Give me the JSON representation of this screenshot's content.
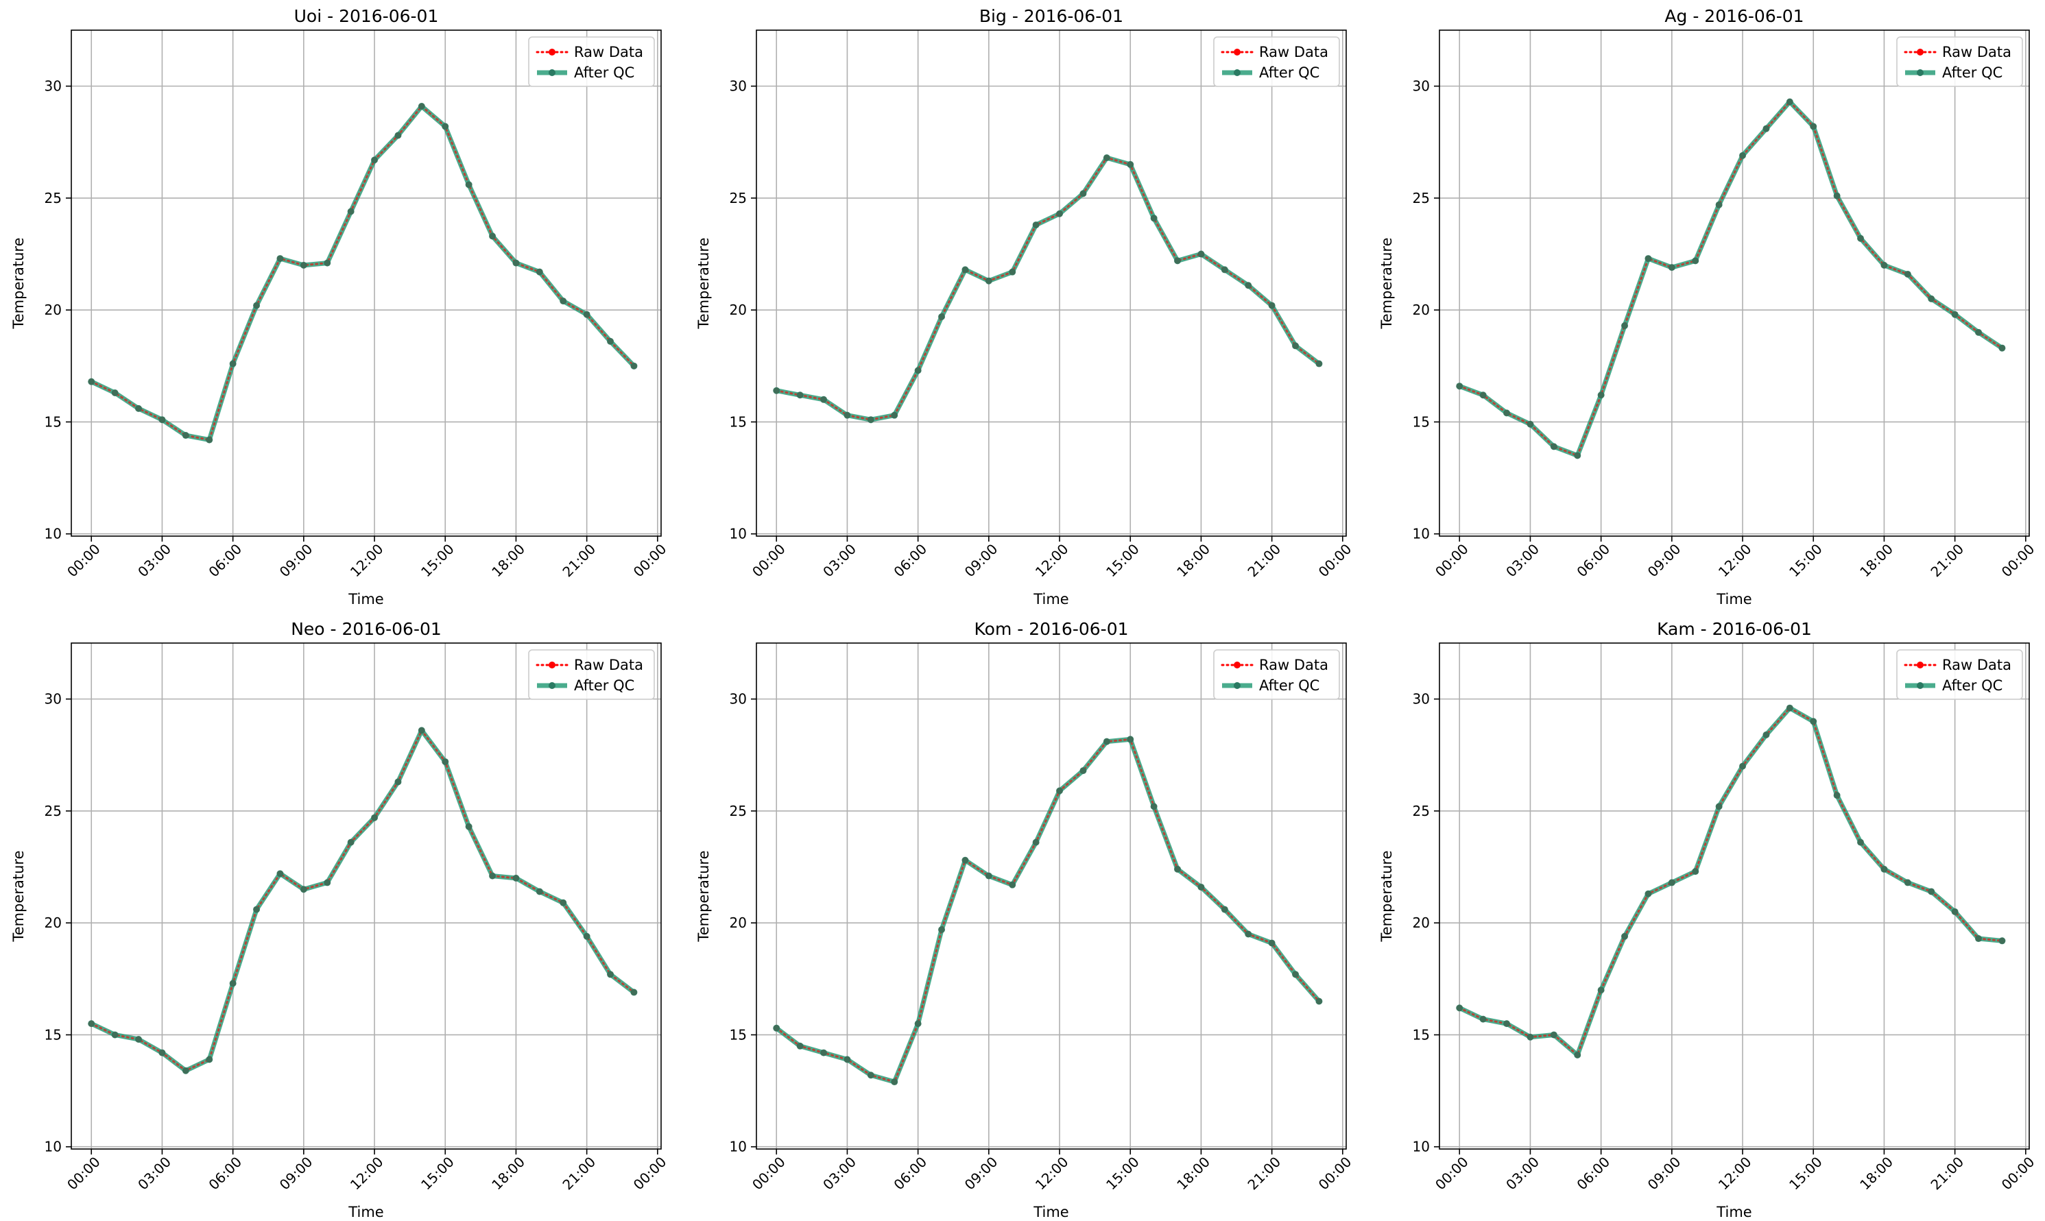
{
  "chart_data": [
    {
      "type": "line",
      "title": "Uoi - 2016-06-01",
      "xlabel": "Time",
      "ylabel": "Temperature",
      "x_ticks": [
        "00:00",
        "03:00",
        "06:00",
        "09:00",
        "12:00",
        "15:00",
        "18:00",
        "21:00",
        "00:00"
      ],
      "y_ticks": [
        "10",
        "15",
        "20",
        "25",
        "30"
      ],
      "ylim": [
        9.9,
        32.5
      ],
      "xlim_hours": [
        -0.85,
        24.15
      ],
      "legend": "top-right",
      "grid": true,
      "x_hours": [
        0,
        1,
        2,
        3,
        4,
        5,
        6,
        7,
        8,
        9,
        10,
        11,
        12,
        13,
        14,
        15,
        16,
        17,
        18,
        19,
        20,
        21,
        22,
        23
      ],
      "series": [
        {
          "name": "Raw Data",
          "color": "#ff0000",
          "style": "dotted",
          "values": [
            16.8,
            16.3,
            15.6,
            15.1,
            14.4,
            14.2,
            17.6,
            20.2,
            22.3,
            22.0,
            22.1,
            24.4,
            26.7,
            27.8,
            29.1,
            28.2,
            25.6,
            23.3,
            22.1,
            21.7,
            20.4,
            19.8,
            18.6,
            17.5
          ]
        },
        {
          "name": "After QC",
          "color": "#2a9d79",
          "style": "solid",
          "values": [
            16.8,
            16.3,
            15.6,
            15.1,
            14.4,
            14.2,
            17.6,
            20.2,
            22.3,
            22.0,
            22.1,
            24.4,
            26.7,
            27.8,
            29.1,
            28.2,
            25.6,
            23.3,
            22.1,
            21.7,
            20.4,
            19.8,
            18.6,
            17.5
          ]
        }
      ]
    },
    {
      "type": "line",
      "title": "Big - 2016-06-01",
      "xlabel": "Time",
      "ylabel": "Temperature",
      "x_ticks": [
        "00:00",
        "03:00",
        "06:00",
        "09:00",
        "12:00",
        "15:00",
        "18:00",
        "21:00",
        "00:00"
      ],
      "y_ticks": [
        "10",
        "15",
        "20",
        "25",
        "30"
      ],
      "ylim": [
        9.9,
        32.5
      ],
      "xlim_hours": [
        -0.85,
        24.15
      ],
      "legend": "top-right",
      "grid": true,
      "x_hours": [
        0,
        1,
        2,
        3,
        4,
        5,
        6,
        7,
        8,
        9,
        10,
        11,
        12,
        13,
        14,
        15,
        16,
        17,
        18,
        19,
        20,
        21,
        22,
        23
      ],
      "series": [
        {
          "name": "Raw Data",
          "color": "#ff0000",
          "style": "dotted",
          "values": [
            16.4,
            16.2,
            16.0,
            15.3,
            15.1,
            15.3,
            17.3,
            19.7,
            21.8,
            21.3,
            21.7,
            23.8,
            24.3,
            25.2,
            26.8,
            26.5,
            24.1,
            22.2,
            22.5,
            21.8,
            21.1,
            20.2,
            18.4,
            17.6
          ]
        },
        {
          "name": "After QC",
          "color": "#2a9d79",
          "style": "solid",
          "values": [
            16.4,
            16.2,
            16.0,
            15.3,
            15.1,
            15.3,
            17.3,
            19.7,
            21.8,
            21.3,
            21.7,
            23.8,
            24.3,
            25.2,
            26.8,
            26.5,
            24.1,
            22.2,
            22.5,
            21.8,
            21.1,
            20.2,
            18.4,
            17.6
          ]
        }
      ]
    },
    {
      "type": "line",
      "title": "Ag - 2016-06-01",
      "xlabel": "Time",
      "ylabel": "Temperature",
      "x_ticks": [
        "00:00",
        "03:00",
        "06:00",
        "09:00",
        "12:00",
        "15:00",
        "18:00",
        "21:00",
        "00:00"
      ],
      "y_ticks": [
        "10",
        "15",
        "20",
        "25",
        "30"
      ],
      "ylim": [
        9.9,
        32.5
      ],
      "xlim_hours": [
        -0.85,
        24.15
      ],
      "legend": "top-right",
      "grid": true,
      "x_hours": [
        0,
        1,
        2,
        3,
        4,
        5,
        6,
        7,
        8,
        9,
        10,
        11,
        12,
        13,
        14,
        15,
        16,
        17,
        18,
        19,
        20,
        21,
        22,
        23
      ],
      "series": [
        {
          "name": "Raw Data",
          "color": "#ff0000",
          "style": "dotted",
          "values": [
            16.6,
            16.2,
            15.4,
            14.9,
            13.9,
            13.5,
            16.2,
            19.3,
            22.3,
            21.9,
            22.2,
            24.7,
            26.9,
            28.1,
            29.3,
            28.2,
            25.1,
            23.2,
            22.0,
            21.6,
            20.5,
            19.8,
            19.0,
            18.3
          ]
        },
        {
          "name": "After QC",
          "color": "#2a9d79",
          "style": "solid",
          "values": [
            16.6,
            16.2,
            15.4,
            14.9,
            13.9,
            13.5,
            16.2,
            19.3,
            22.3,
            21.9,
            22.2,
            24.7,
            26.9,
            28.1,
            29.3,
            28.2,
            25.1,
            23.2,
            22.0,
            21.6,
            20.5,
            19.8,
            19.0,
            18.3
          ]
        }
      ]
    },
    {
      "type": "line",
      "title": "Neo - 2016-06-01",
      "xlabel": "Time",
      "ylabel": "Temperature",
      "x_ticks": [
        "00:00",
        "03:00",
        "06:00",
        "09:00",
        "12:00",
        "15:00",
        "18:00",
        "21:00",
        "00:00"
      ],
      "y_ticks": [
        "10",
        "15",
        "20",
        "25",
        "30"
      ],
      "ylim": [
        9.9,
        32.5
      ],
      "xlim_hours": [
        -0.85,
        24.15
      ],
      "legend": "top-right",
      "grid": true,
      "x_hours": [
        0,
        1,
        2,
        3,
        4,
        5,
        6,
        7,
        8,
        9,
        10,
        11,
        12,
        13,
        14,
        15,
        16,
        17,
        18,
        19,
        20,
        21,
        22,
        23
      ],
      "series": [
        {
          "name": "Raw Data",
          "color": "#ff0000",
          "style": "dotted",
          "values": [
            15.5,
            15.0,
            14.8,
            14.2,
            13.4,
            13.9,
            17.3,
            20.6,
            22.2,
            21.5,
            21.8,
            23.6,
            24.7,
            26.3,
            28.6,
            27.2,
            24.3,
            22.1,
            22.0,
            21.4,
            20.9,
            19.4,
            17.7,
            16.9
          ]
        },
        {
          "name": "After QC",
          "color": "#2a9d79",
          "style": "solid",
          "values": [
            15.5,
            15.0,
            14.8,
            14.2,
            13.4,
            13.9,
            17.3,
            20.6,
            22.2,
            21.5,
            21.8,
            23.6,
            24.7,
            26.3,
            28.6,
            27.2,
            24.3,
            22.1,
            22.0,
            21.4,
            20.9,
            19.4,
            17.7,
            16.9
          ]
        }
      ]
    },
    {
      "type": "line",
      "title": "Kom - 2016-06-01",
      "xlabel": "Time",
      "ylabel": "Temperature",
      "x_ticks": [
        "00:00",
        "03:00",
        "06:00",
        "09:00",
        "12:00",
        "15:00",
        "18:00",
        "21:00",
        "00:00"
      ],
      "y_ticks": [
        "10",
        "15",
        "20",
        "25",
        "30"
      ],
      "ylim": [
        9.9,
        32.5
      ],
      "xlim_hours": [
        -0.85,
        24.15
      ],
      "legend": "top-right",
      "grid": true,
      "x_hours": [
        0,
        1,
        2,
        3,
        4,
        5,
        6,
        7,
        8,
        9,
        10,
        11,
        12,
        13,
        14,
        15,
        16,
        17,
        18,
        19,
        20,
        21,
        22,
        23
      ],
      "series": [
        {
          "name": "Raw Data",
          "color": "#ff0000",
          "style": "dotted",
          "values": [
            15.3,
            14.5,
            14.2,
            13.9,
            13.2,
            12.9,
            15.5,
            19.7,
            22.8,
            22.1,
            21.7,
            23.6,
            25.9,
            26.8,
            28.1,
            28.2,
            25.2,
            22.4,
            21.6,
            20.6,
            19.5,
            19.1,
            17.7,
            16.5
          ]
        },
        {
          "name": "After QC",
          "color": "#2a9d79",
          "style": "solid",
          "values": [
            15.3,
            14.5,
            14.2,
            13.9,
            13.2,
            12.9,
            15.5,
            19.7,
            22.8,
            22.1,
            21.7,
            23.6,
            25.9,
            26.8,
            28.1,
            28.2,
            25.2,
            22.4,
            21.6,
            20.6,
            19.5,
            19.1,
            17.7,
            16.5
          ]
        }
      ]
    },
    {
      "type": "line",
      "title": "Kam - 2016-06-01",
      "xlabel": "Time",
      "ylabel": "Temperature",
      "x_ticks": [
        "00:00",
        "03:00",
        "06:00",
        "09:00",
        "12:00",
        "15:00",
        "18:00",
        "21:00",
        "00:00"
      ],
      "y_ticks": [
        "10",
        "15",
        "20",
        "25",
        "30"
      ],
      "ylim": [
        9.9,
        32.5
      ],
      "xlim_hours": [
        -0.85,
        24.15
      ],
      "legend": "top-right",
      "grid": true,
      "x_hours": [
        0,
        1,
        2,
        3,
        4,
        5,
        6,
        7,
        8,
        9,
        10,
        11,
        12,
        13,
        14,
        15,
        16,
        17,
        18,
        19,
        20,
        21,
        22,
        23
      ],
      "series": [
        {
          "name": "Raw Data",
          "color": "#ff0000",
          "style": "dotted",
          "values": [
            16.2,
            15.7,
            15.5,
            14.9,
            15.0,
            14.1,
            17.0,
            19.4,
            21.3,
            21.8,
            22.3,
            25.2,
            27.0,
            28.4,
            29.6,
            29.0,
            25.7,
            23.6,
            22.4,
            21.8,
            21.4,
            20.5,
            19.3,
            19.2
          ]
        },
        {
          "name": "After QC",
          "color": "#2a9d79",
          "style": "solid",
          "values": [
            16.2,
            15.7,
            15.5,
            14.9,
            15.0,
            14.1,
            17.0,
            19.4,
            21.3,
            21.8,
            22.3,
            25.2,
            27.0,
            28.4,
            29.6,
            29.0,
            25.7,
            23.6,
            22.4,
            21.8,
            21.4,
            20.5,
            19.3,
            19.2
          ]
        }
      ]
    }
  ]
}
